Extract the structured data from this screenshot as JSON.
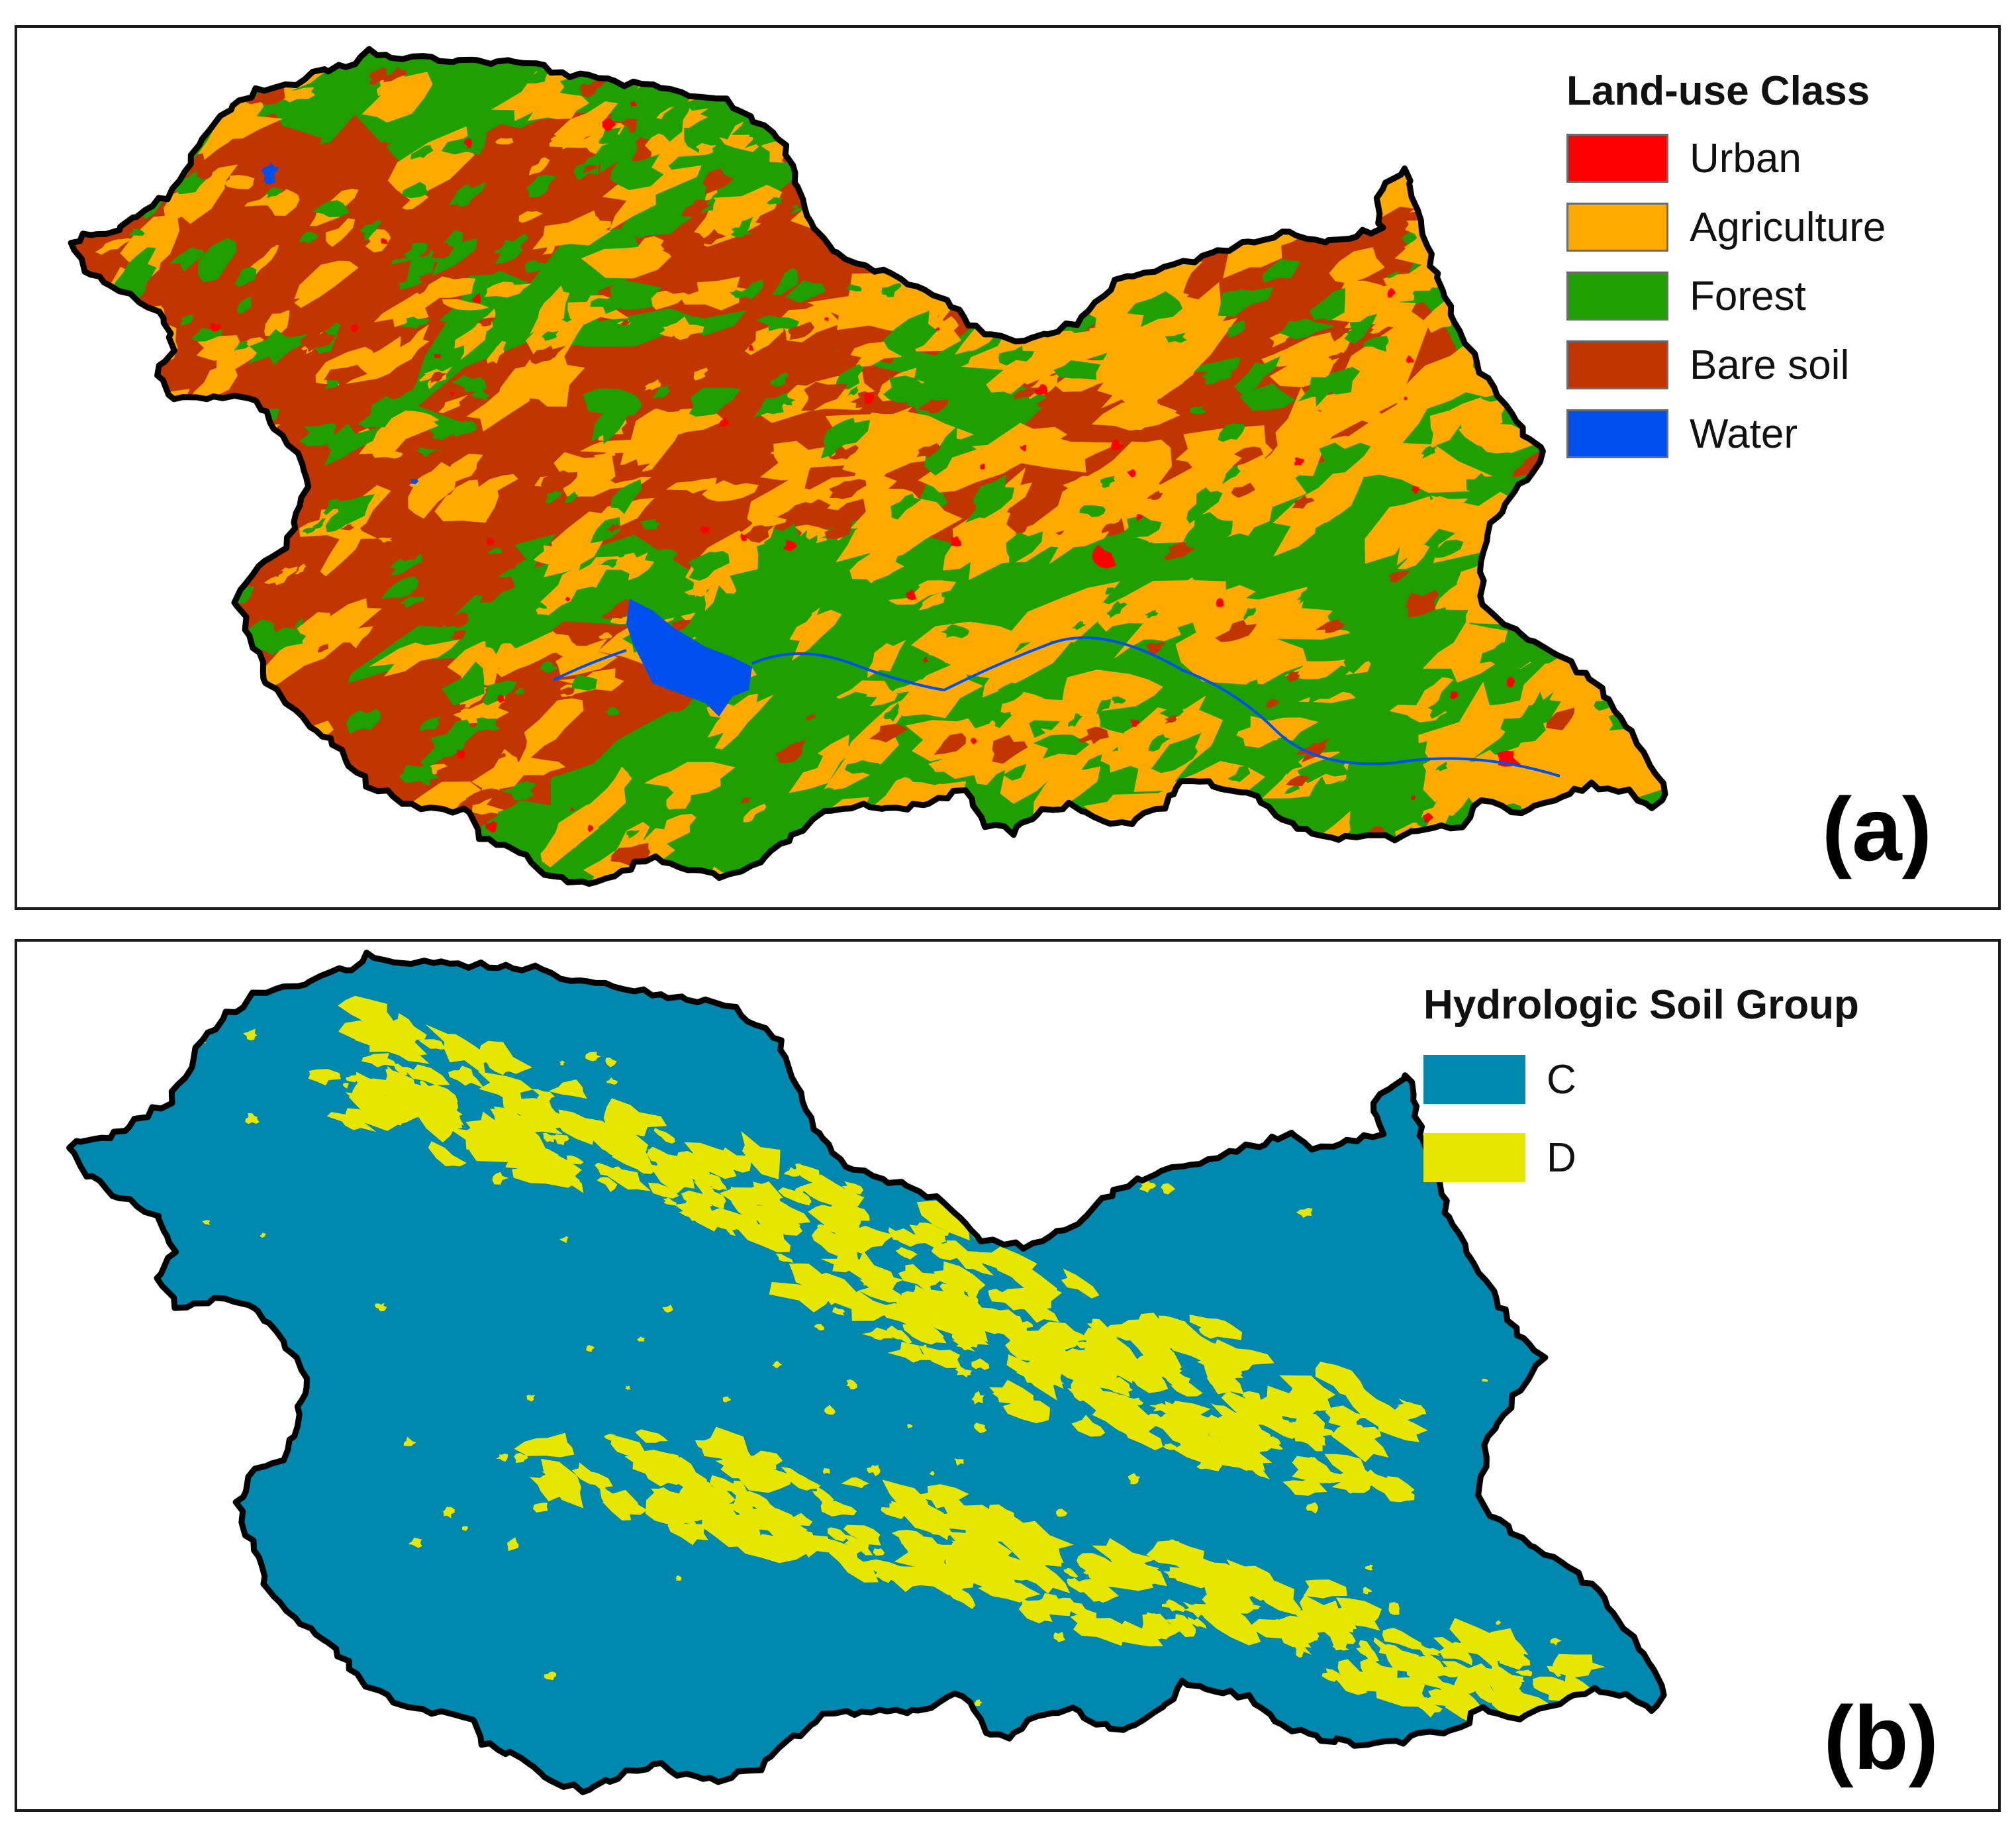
{
  "panel_a": {
    "legend_title": "Land-use Class",
    "classes": [
      {
        "label": "Urban",
        "color": "#ff0000"
      },
      {
        "label": "Agriculture",
        "color": "#ffaa00"
      },
      {
        "label": "Forest",
        "color": "#1fa000"
      },
      {
        "label": "Bare soil",
        "color": "#c03500"
      },
      {
        "label": "Water",
        "color": "#0050ee"
      }
    ],
    "tag": "(a)"
  },
  "panel_b": {
    "legend_title": "Hydrologic Soil Group",
    "classes": [
      {
        "label": "C",
        "color": "#0088ae"
      },
      {
        "label": "D",
        "color": "#e6e600"
      }
    ],
    "tag": "(b)"
  },
  "boundary_color": "#000000"
}
